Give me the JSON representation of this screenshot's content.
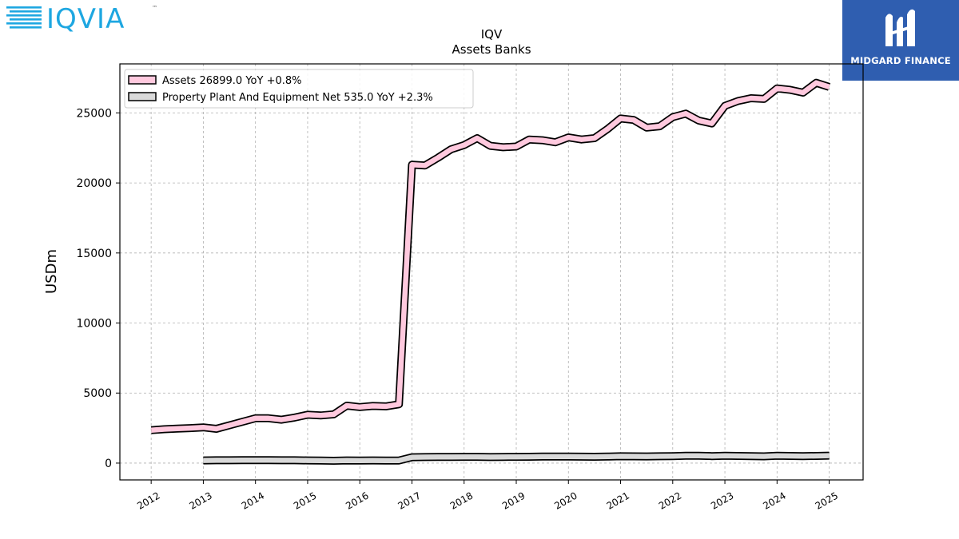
{
  "logos": {
    "left": {
      "text": "IQVIA",
      "tm": "™"
    },
    "right": {
      "text": "MIDGARD FINANCE"
    }
  },
  "colors": {
    "assets_fill": "#ffc9de",
    "ppe_fill": "#d9d9d9",
    "outline": "#000000",
    "grid": "#b0b0b0",
    "iqvia_blue": "#1ea7e1",
    "iqvia_dark": "#0d3f6b",
    "midgard_bg": "#2f5eb0"
  },
  "chart_data": {
    "type": "line",
    "title": "IQV",
    "subtitle": "Assets Banks",
    "ylabel": "USDm",
    "xlabel": "",
    "ylim": [
      -1200,
      28500
    ],
    "xlim": [
      2011.4,
      2025.65
    ],
    "yticks": [
      0,
      5000,
      10000,
      15000,
      20000,
      25000
    ],
    "xticks": [
      "2012",
      "2013",
      "2014",
      "2015",
      "2016",
      "2017",
      "2018",
      "2019",
      "2020",
      "2021",
      "2022",
      "2023",
      "2024",
      "2025"
    ],
    "grid": true,
    "legend_position": "top-left",
    "series": [
      {
        "name": "Assets  26899.0 YoY +0.8%",
        "x": [
          2012.0,
          2012.25,
          2012.5,
          2012.75,
          2013.0,
          2013.25,
          2013.5,
          2013.75,
          2014.0,
          2014.25,
          2014.5,
          2014.75,
          2015.0,
          2015.25,
          2015.5,
          2015.75,
          2016.0,
          2016.25,
          2016.5,
          2016.75,
          2017.0,
          2017.25,
          2017.5,
          2017.75,
          2018.0,
          2018.25,
          2018.5,
          2018.75,
          2019.0,
          2019.25,
          2019.5,
          2019.75,
          2020.0,
          2020.25,
          2020.5,
          2020.75,
          2021.0,
          2021.25,
          2021.5,
          2021.75,
          2022.0,
          2022.25,
          2022.5,
          2022.75,
          2023.0,
          2023.25,
          2023.5,
          2023.75,
          2024.0,
          2024.25,
          2024.5,
          2024.75,
          2025.0
        ],
        "values": [
          2350,
          2420,
          2460,
          2500,
          2550,
          2450,
          2700,
          2950,
          3200,
          3200,
          3100,
          3250,
          3450,
          3400,
          3480,
          4100,
          4000,
          4080,
          4050,
          4200,
          21300,
          21250,
          21800,
          22400,
          22700,
          23200,
          22650,
          22550,
          22600,
          23100,
          23050,
          22900,
          23250,
          23100,
          23200,
          23850,
          24600,
          24500,
          23950,
          24050,
          24700,
          24950,
          24450,
          24250,
          25500,
          25850,
          26050,
          26000,
          26750,
          26650,
          26450,
          27150,
          26850
        ]
      },
      {
        "name": "Property Plant And Equipment Net  535.0 YoY +2.3%",
        "x": [
          2013.0,
          2013.25,
          2013.5,
          2013.75,
          2014.0,
          2014.25,
          2014.5,
          2014.75,
          2015.0,
          2015.25,
          2015.5,
          2015.75,
          2016.0,
          2016.25,
          2016.5,
          2016.75,
          2017.0,
          2017.25,
          2017.5,
          2017.75,
          2018.0,
          2018.25,
          2018.5,
          2018.75,
          2019.0,
          2019.25,
          2019.5,
          2019.75,
          2020.0,
          2020.25,
          2020.5,
          2020.75,
          2021.0,
          2021.25,
          2021.5,
          2021.75,
          2022.0,
          2022.25,
          2022.5,
          2022.75,
          2023.0,
          2023.25,
          2023.5,
          2023.75,
          2024.0,
          2024.25,
          2024.5,
          2024.75,
          2025.0
        ],
        "values": [
          190,
          200,
          205,
          210,
          215,
          210,
          205,
          200,
          190,
          180,
          170,
          190,
          185,
          190,
          180,
          185,
          420,
          430,
          440,
          440,
          450,
          445,
          430,
          440,
          450,
          455,
          470,
          465,
          470,
          460,
          455,
          465,
          490,
          480,
          475,
          485,
          500,
          530,
          520,
          500,
          520,
          510,
          500,
          480,
          520,
          510,
          500,
          510,
          535
        ]
      }
    ]
  }
}
